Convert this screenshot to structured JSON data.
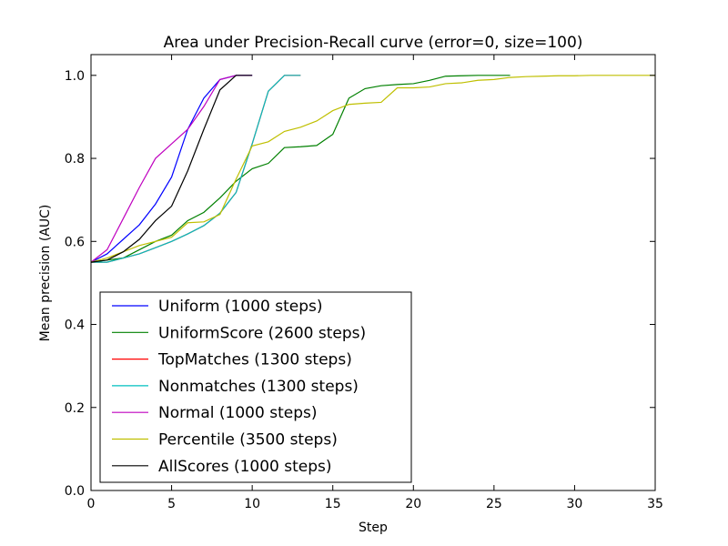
{
  "chart_data": {
    "type": "line",
    "title": "Area under Precision-Recall curve (error=0, size=100)",
    "xlabel": "Step",
    "ylabel": "Mean precision (AUC)",
    "xlim": [
      0,
      35
    ],
    "ylim": [
      0.0,
      1.05
    ],
    "xticks": [
      0,
      5,
      10,
      15,
      20,
      25,
      30,
      35
    ],
    "xtick_labels": [
      "0",
      "5",
      "10",
      "15",
      "20",
      "25",
      "30",
      "35"
    ],
    "yticks": [
      0.0,
      0.2,
      0.4,
      0.6,
      0.8,
      1.0
    ],
    "ytick_labels": [
      "0.0",
      "0.2",
      "0.4",
      "0.6",
      "0.8",
      "1.0"
    ],
    "grid": false,
    "legend_position": "lower-left",
    "series": [
      {
        "name": "Uniform (1000 steps)",
        "color": "#0000ff",
        "x": [
          0,
          1,
          2,
          3,
          4,
          5,
          6,
          7,
          8,
          9,
          10
        ],
        "y": [
          0.55,
          0.57,
          0.605,
          0.64,
          0.69,
          0.755,
          0.87,
          0.945,
          0.99,
          1.0,
          1.0
        ]
      },
      {
        "name": "UniformScore (2600 steps)",
        "color": "#008000",
        "x": [
          0,
          1,
          2,
          3,
          4,
          5,
          6,
          7,
          8,
          9,
          10,
          11,
          12,
          13,
          14,
          15,
          16,
          17,
          18,
          19,
          20,
          21,
          22,
          23,
          24,
          25,
          26
        ],
        "y": [
          0.55,
          0.555,
          0.56,
          0.58,
          0.6,
          0.615,
          0.65,
          0.67,
          0.705,
          0.745,
          0.775,
          0.788,
          0.826,
          0.828,
          0.831,
          0.858,
          0.945,
          0.968,
          0.975,
          0.978,
          0.98,
          0.988,
          0.998,
          0.999,
          1.0,
          1.0,
          1.0
        ]
      },
      {
        "name": "TopMatches (1300 steps)",
        "color": "#ff0000",
        "x": [
          0,
          1,
          2,
          3,
          4,
          5,
          6,
          7,
          8,
          9,
          10,
          11,
          12,
          13
        ],
        "y": [
          0.55,
          0.55,
          0.56,
          0.57,
          0.585,
          0.6,
          0.618,
          0.638,
          0.668,
          0.718,
          0.835,
          0.962,
          1.0,
          1.0
        ]
      },
      {
        "name": "Nonmatches (1300 steps)",
        "color": "#00bfbf",
        "x": [
          0,
          1,
          2,
          3,
          4,
          5,
          6,
          7,
          8,
          9,
          10,
          11,
          12,
          13
        ],
        "y": [
          0.55,
          0.55,
          0.56,
          0.57,
          0.585,
          0.6,
          0.618,
          0.638,
          0.668,
          0.718,
          0.835,
          0.962,
          1.0,
          1.0
        ]
      },
      {
        "name": "Normal (1000 steps)",
        "color": "#bf00bf",
        "x": [
          0,
          1,
          2,
          3,
          4,
          5,
          6,
          7,
          8,
          9,
          10
        ],
        "y": [
          0.55,
          0.58,
          0.655,
          0.73,
          0.8,
          0.835,
          0.87,
          0.925,
          0.99,
          1.0,
          1.0
        ]
      },
      {
        "name": "Percentile (3500 steps)",
        "color": "#bfbf00",
        "x": [
          0,
          1,
          2,
          3,
          4,
          5,
          6,
          7,
          8,
          9,
          10,
          11,
          12,
          13,
          14,
          15,
          16,
          17,
          18,
          19,
          20,
          21,
          22,
          23,
          24,
          25,
          26,
          27,
          28,
          29,
          30,
          31,
          32,
          33,
          34,
          35
        ],
        "y": [
          0.55,
          0.56,
          0.575,
          0.59,
          0.6,
          0.61,
          0.645,
          0.647,
          0.665,
          0.75,
          0.83,
          0.84,
          0.865,
          0.875,
          0.89,
          0.915,
          0.93,
          0.933,
          0.935,
          0.97,
          0.97,
          0.972,
          0.98,
          0.982,
          0.988,
          0.99,
          0.995,
          0.997,
          0.998,
          0.999,
          0.999,
          1.0,
          1.0,
          1.0,
          1.0,
          1.0
        ]
      },
      {
        "name": "AllScores (1000 steps)",
        "color": "#000000",
        "x": [
          0,
          1,
          2,
          3,
          4,
          5,
          6,
          7,
          8,
          9,
          10
        ],
        "y": [
          0.55,
          0.555,
          0.575,
          0.605,
          0.65,
          0.685,
          0.77,
          0.87,
          0.965,
          1.0,
          1.0
        ]
      }
    ]
  }
}
